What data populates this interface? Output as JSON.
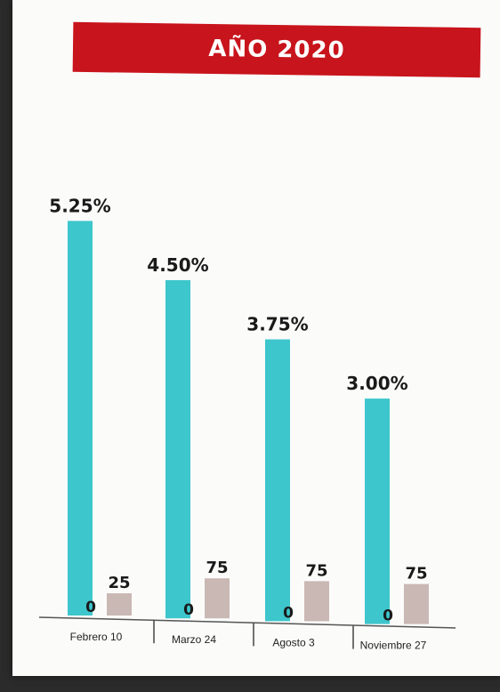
{
  "chart_data": {
    "type": "bar",
    "title": "AÑO 2020",
    "categories": [
      "Febrero 10",
      "Marzo 24",
      "Agosto 3",
      "Noviembre 27"
    ],
    "series": [
      {
        "values": [
          5.25,
          4.5,
          3.75,
          3.0
        ],
        "labels": [
          "5.25%",
          "4.50%",
          "3.75%",
          "3.00%"
        ],
        "color": "#3dc6cc"
      },
      {
        "values": [
          0,
          0,
          0,
          0
        ],
        "labels": [
          "0",
          "0",
          "0",
          "0"
        ],
        "color": "#c9b8b4"
      },
      {
        "values": [
          0.25,
          0.75,
          0.75,
          0.75
        ],
        "labels": [
          "25",
          "75",
          "75",
          "75"
        ],
        "color": "#c9b8b4"
      }
    ],
    "grid": false
  }
}
